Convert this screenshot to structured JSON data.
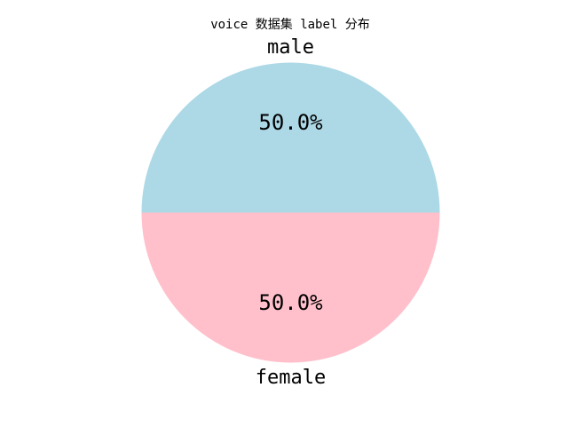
{
  "chart_data": {
    "type": "pie",
    "title": "voice 数据集 label 分布",
    "labels": [
      "female",
      "male"
    ],
    "values": [
      50.0,
      50.0
    ],
    "percent_labels": [
      "50.0%",
      "50.0%"
    ],
    "colors": [
      "#ffc0cb",
      "#add8e6"
    ],
    "start_angle_deg": 180,
    "legend": "none"
  }
}
